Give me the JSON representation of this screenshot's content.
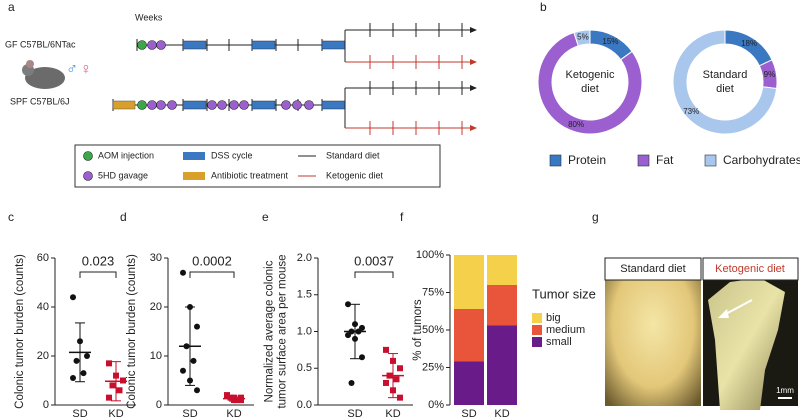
{
  "panels": [
    "a",
    "b",
    "c",
    "d",
    "e",
    "f",
    "g"
  ],
  "diagram": {
    "weeks_label": "Weeks",
    "strain_gf": "GF C57BL/6NTac",
    "strain_spf": "SPF C57BL/6J",
    "sex_symbols": [
      "♂",
      "♀"
    ],
    "legend": [
      "AOM injection",
      "5HD gavage",
      "DSS cycle",
      "Antibiotic treatment",
      "Standard diet",
      "Ketogenic diet"
    ]
  },
  "chart_data": [
    {
      "type": "donut",
      "title": [
        "Ketogenic",
        "diet"
      ],
      "categories": [
        "Protein",
        "Fat",
        "Carbohydrates"
      ],
      "values": [
        15,
        80,
        5
      ],
      "value_labels": [
        "15%",
        "80%",
        "5%"
      ],
      "colors": [
        "#3a78c2",
        "#9b5fcf",
        "#a9c6ec"
      ]
    },
    {
      "type": "donut",
      "title": [
        "Standard",
        "diet"
      ],
      "categories": [
        "Protein",
        "Fat",
        "Carbohydrates"
      ],
      "values": [
        18,
        9,
        73
      ],
      "value_labels": [
        "18%",
        "9%",
        "73%"
      ],
      "colors": [
        "#3a78c2",
        "#9b5fcf",
        "#a9c6ec"
      ]
    },
    {
      "type": "dot",
      "ylabel": [
        "Colonic tumor burden (counts)"
      ],
      "categories": [
        "SD",
        "KD"
      ],
      "values": [
        [
          44,
          26,
          20,
          18,
          13,
          11
        ],
        [
          17,
          12,
          10,
          8,
          6,
          3
        ]
      ],
      "mean": [
        21.5,
        9.7
      ],
      "sd": [
        12,
        8
      ],
      "colors": [
        "#111111",
        "#c8102e"
      ],
      "markers": [
        "circle",
        "square"
      ],
      "annotation": "0.023",
      "ylim": [
        0,
        60
      ],
      "yticks": [
        0,
        20,
        40,
        60
      ]
    },
    {
      "type": "dot",
      "ylabel": [
        "Colonic tumor burden (counts)"
      ],
      "categories": [
        "SD",
        "KD"
      ],
      "values": [
        [
          27,
          20,
          16,
          12,
          9,
          7,
          5,
          3
        ],
        [
          2,
          1.5,
          1,
          1.5,
          1,
          2,
          1,
          1.5
        ]
      ],
      "mean": [
        12,
        1.3
      ],
      "sd": [
        8,
        0.5
      ],
      "colors": [
        "#111111",
        "#c8102e"
      ],
      "markers": [
        "circle",
        "square"
      ],
      "annotation": "0.0002",
      "ylim": [
        0,
        30
      ],
      "yticks": [
        0,
        10,
        20,
        30
      ]
    },
    {
      "type": "dot",
      "ylabel": [
        "Normalized average colonic",
        "tumor surface area per mouse"
      ],
      "categories": [
        "SD",
        "KD"
      ],
      "values": [
        [
          1.37,
          1.1,
          1.05,
          1.0,
          1.0,
          0.95,
          0.9,
          0.65,
          0.3
        ],
        [
          0.75,
          0.6,
          0.5,
          0.4,
          0.35,
          0.3,
          0.2,
          0.1
        ]
      ],
      "mean": [
        1.0,
        0.4
      ],
      "sd": [
        0.37,
        0.3
      ],
      "colors": [
        "#111111",
        "#c8102e"
      ],
      "markers": [
        "circle",
        "square"
      ],
      "annotation": "0.0037",
      "ylim": [
        0,
        2
      ],
      "yticks": [
        {
          "value": 0,
          "label": "0.0"
        },
        0.5,
        {
          "value": 1,
          "label": "1.0"
        },
        1.5,
        {
          "value": 2,
          "label": "2.0"
        }
      ]
    },
    {
      "type": "stacked_bar",
      "ylabel": "% of tumors",
      "legend_title": "Tumor size",
      "categories": [
        "SD",
        "KD"
      ],
      "series": [
        {
          "name": "small",
          "color": "#6a1b8a",
          "values": [
            29,
            53
          ]
        },
        {
          "name": "medium",
          "color": "#e8553a",
          "values": [
            35,
            27
          ]
        },
        {
          "name": "big",
          "color": "#f5d04a",
          "values": [
            36,
            20
          ]
        }
      ],
      "ylim": [
        0,
        100
      ],
      "yticks": [
        {
          "value": 0,
          "label": "0%"
        },
        {
          "value": 25,
          "label": "25%"
        },
        {
          "value": 50,
          "label": "50%"
        },
        {
          "value": 75,
          "label": "75%"
        },
        {
          "value": 100,
          "label": "100%"
        }
      ]
    }
  ],
  "photo": {
    "labels": [
      "Standard diet",
      "Ketogenic diet"
    ],
    "scale_bar": "1mm"
  }
}
